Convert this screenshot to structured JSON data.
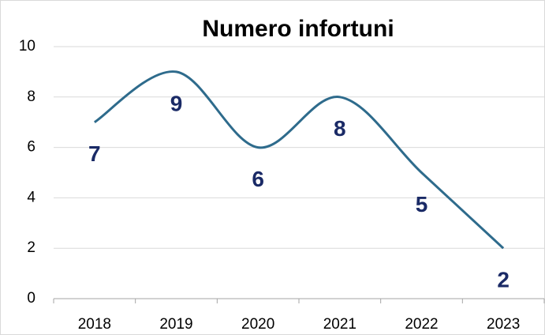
{
  "chart_data": {
    "type": "line",
    "title": "Numero infortuni",
    "categories": [
      "2018",
      "2019",
      "2020",
      "2021",
      "2022",
      "2023"
    ],
    "values": [
      7,
      9,
      6,
      8,
      5,
      2
    ],
    "color": "#2e6b8c",
    "label_color": "#1a2a66",
    "smooth": true,
    "ylim": [
      0,
      10
    ],
    "yticks": [
      0,
      2,
      4,
      6,
      8,
      10
    ],
    "grid": true
  }
}
